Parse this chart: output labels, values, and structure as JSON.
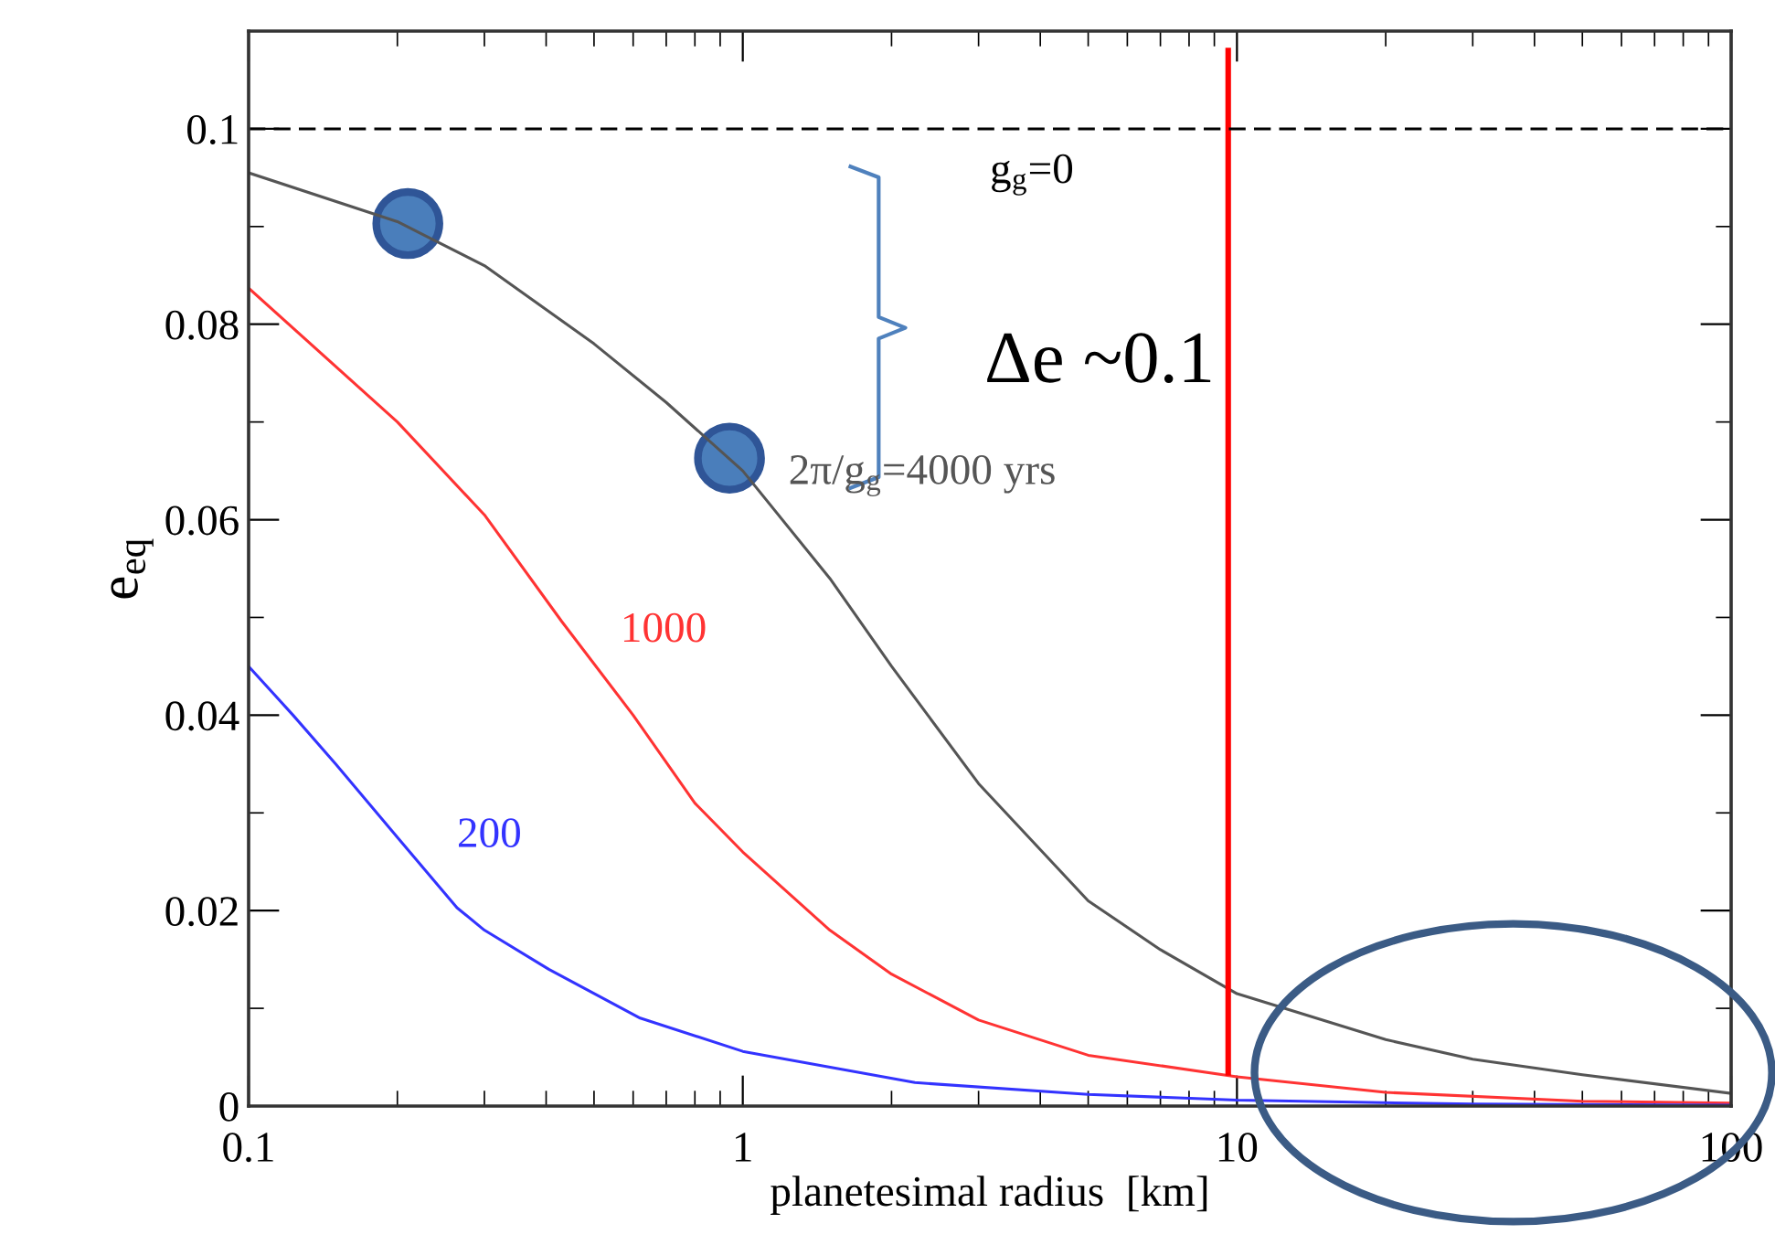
{
  "chart_data": {
    "type": "line",
    "xlabel": "planetesimal radius  [km]",
    "ylabel": "e$_{eq}$",
    "log": "x",
    "xlim": [
      0.1,
      100
    ],
    "xticks": [
      0.1,
      1,
      10,
      100
    ],
    "ylim": [
      0,
      0.11
    ],
    "yticks": [
      0,
      0.02,
      0.04,
      0.06,
      0.08,
      0.1
    ],
    "grid": false,
    "legend": false,
    "marker": "none",
    "line_style": "solid",
    "series": [
      {
        "name": "2π/g$_{g}$=4000 yrs",
        "color": "#555555",
        "x": [
          0.1,
          0.2,
          0.3,
          0.5,
          0.7,
          1,
          1.5,
          2,
          3,
          5,
          7,
          10,
          20,
          30,
          50,
          100
        ],
        "values": [
          0.0955,
          0.0905,
          0.086,
          0.078,
          0.072,
          0.065,
          0.054,
          0.045,
          0.033,
          0.021,
          0.016,
          0.0115,
          0.0068,
          0.0048,
          0.0032,
          0.0013
        ]
      },
      {
        "name": "1000",
        "color": "#ff3333",
        "x": [
          0.1,
          0.2,
          0.3,
          0.43,
          0.6,
          0.8,
          1,
          1.5,
          2,
          3,
          5,
          10,
          20,
          50,
          100
        ],
        "values": [
          0.0837,
          0.07,
          0.0605,
          0.0496,
          0.04,
          0.031,
          0.026,
          0.018,
          0.0135,
          0.0088,
          0.0052,
          0.003,
          0.0014,
          0.0005,
          0.0003
        ]
      },
      {
        "name": "200",
        "color": "#3333ff",
        "x": [
          0.1,
          0.123,
          0.15,
          0.2,
          0.264,
          0.3,
          0.405,
          0.62,
          1,
          2.23,
          5,
          10,
          30,
          100
        ],
        "values": [
          0.045,
          0.04,
          0.035,
          0.0275,
          0.0203,
          0.018,
          0.014,
          0.009,
          0.0056,
          0.0024,
          0.0012,
          0.0006,
          0.0002,
          0.0001
        ]
      },
      {
        "color": "#ff0000",
        "x": [
          9.6,
          9.6
        ],
        "values": [
          0.0034,
          0.108
        ]
      },
      {
        "type": "scatter",
        "marker": "circle",
        "color": "#4a7ebb",
        "x": [
          0.21,
          0.94
        ],
        "values": [
          0.0903,
          0.0663
        ]
      }
    ],
    "ref_lines": [
      {
        "axis": "y",
        "value": 0.1,
        "label": "g$_{g}$=0",
        "color": "#000000",
        "line_style": "dashed"
      }
    ],
    "annotations": [
      "Δe ~0.1"
    ]
  }
}
